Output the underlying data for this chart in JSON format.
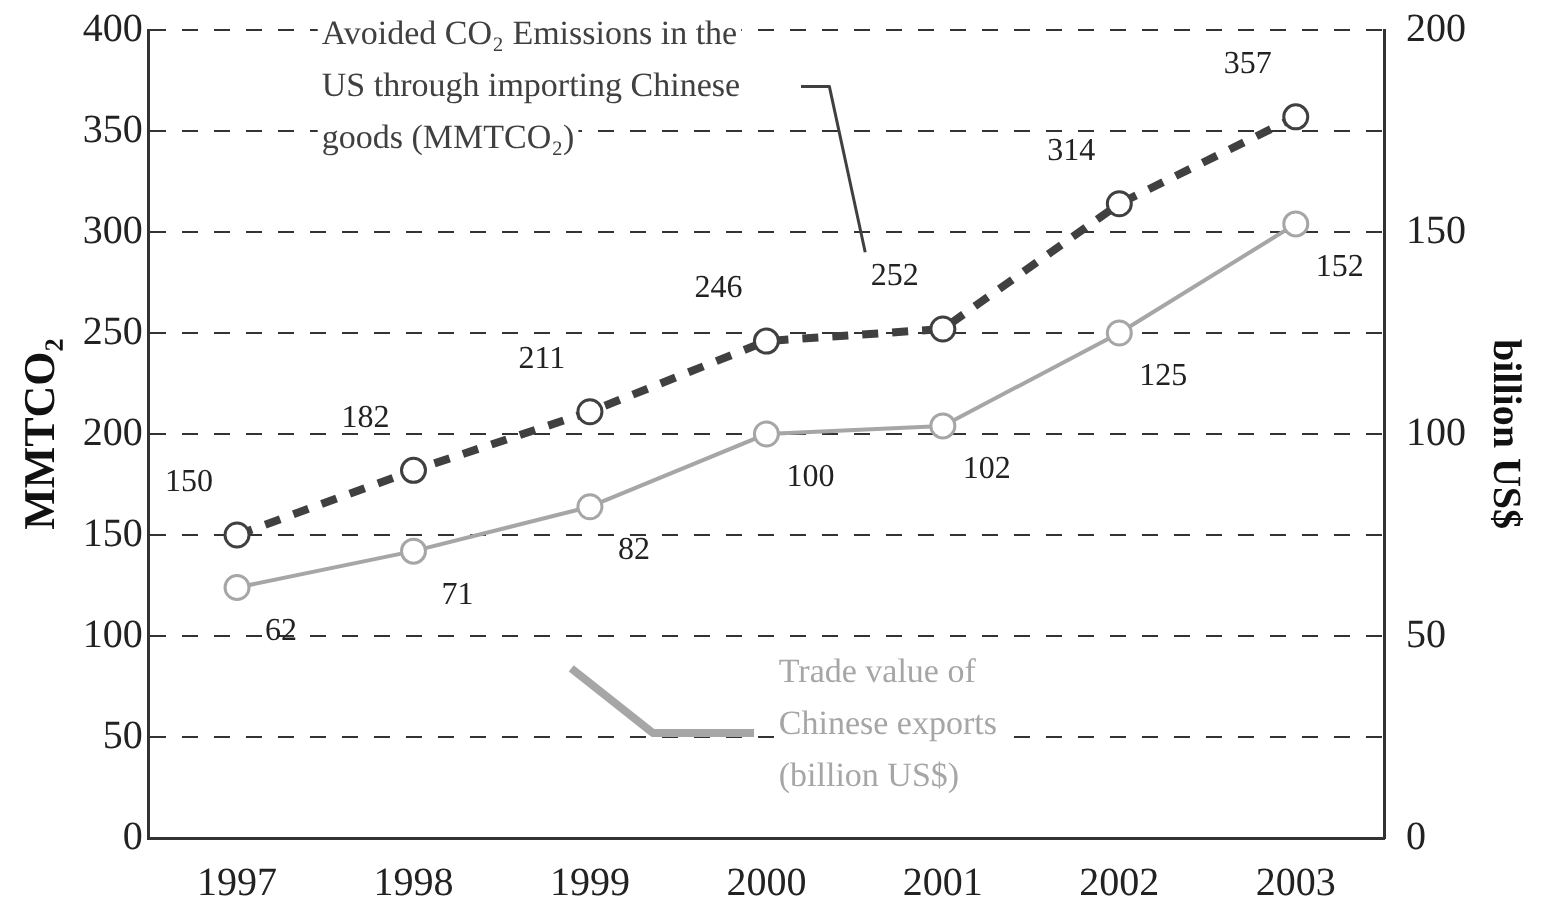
{
  "chart_data": {
    "type": "line",
    "categories": [
      "1997",
      "1998",
      "1999",
      "2000",
      "2001",
      "2002",
      "2003"
    ],
    "ylabel": "MMTCO₂",
    "y2label": "billion US$",
    "ylim": [
      0,
      400
    ],
    "yticks": [
      0,
      50,
      100,
      150,
      200,
      250,
      300,
      350,
      400
    ],
    "y2lim": [
      0,
      200
    ],
    "y2ticks": [
      0,
      50,
      100,
      150,
      200
    ],
    "grid": "y",
    "marker": "circle",
    "data_labels": true,
    "series": [
      {
        "name": "Avoided CO₂ Emissions in the US through importing Chinese goods (MMTCO₂)",
        "color": "#404040",
        "line_style": "dashed",
        "values": [
          150,
          182,
          211,
          246,
          252,
          314,
          357
        ]
      },
      {
        "name": "Trade value of Chinese exports (billion US$)",
        "color": "#a6a6a6",
        "line_style": "solid",
        "axis": "y2",
        "values": [
          62,
          71,
          82,
          100,
          102,
          125,
          152
        ]
      }
    ]
  }
}
